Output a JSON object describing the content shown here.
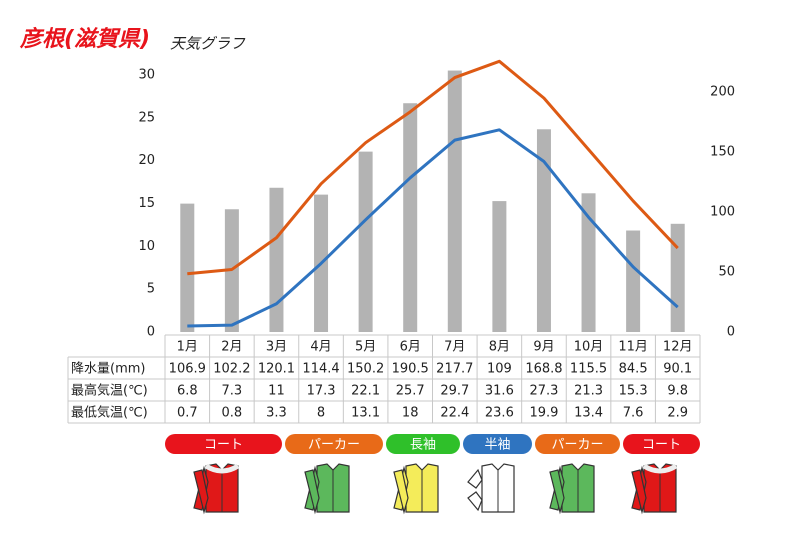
{
  "chart_data": {
    "type": "bar",
    "title": "彦根(滋賀県)",
    "subtitle": "天気グラフ",
    "categories": [
      "1月",
      "2月",
      "3月",
      "4月",
      "5月",
      "6月",
      "7月",
      "8月",
      "9月",
      "10月",
      "11月",
      "12月"
    ],
    "series": [
      {
        "name": "降水量(mm)",
        "type": "bar",
        "axis": "y2",
        "color": "#b3b3b3",
        "values": [
          106.9,
          102.2,
          120.1,
          114.4,
          150.2,
          190.5,
          217.7,
          109,
          168.8,
          115.5,
          84.5,
          90.1
        ]
      },
      {
        "name": "最高気温(℃)",
        "type": "line",
        "color": "#dd5a14",
        "values": [
          6.8,
          7.3,
          11,
          17.3,
          22.1,
          25.7,
          29.7,
          31.6,
          27.3,
          21.3,
          15.3,
          9.8
        ]
      },
      {
        "name": "最低気温(℃)",
        "type": "line",
        "color": "#2f74c0",
        "values": [
          0.7,
          0.8,
          3.3,
          8,
          13.1,
          18,
          22.4,
          23.6,
          19.9,
          13.4,
          7.6,
          2.9
        ]
      }
    ],
    "ylim": [
      0,
      30
    ],
    "yticks": [
      0,
      5,
      10,
      15,
      20,
      25,
      30
    ],
    "y2lim": [
      0,
      214
    ],
    "y2ticks": [
      0,
      50,
      100,
      150,
      200
    ],
    "grid": false,
    "clothing": [
      {
        "label": "コート",
        "color": "#e8141c"
      },
      {
        "label": "パーカー",
        "color": "#e86a18"
      },
      {
        "label": "長袖",
        "color": "#2fc02a"
      },
      {
        "label": "半袖",
        "color": "#2f74c0"
      },
      {
        "label": "パーカー",
        "color": "#e86a18"
      },
      {
        "label": "コート",
        "color": "#e8141c"
      }
    ]
  }
}
